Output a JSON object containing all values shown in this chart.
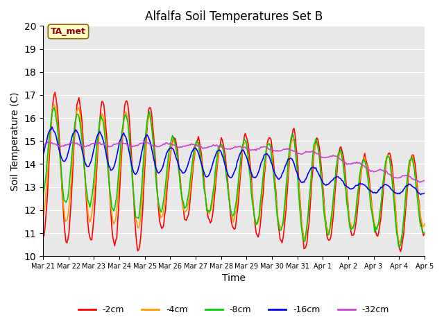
{
  "title": "Alfalfa Soil Temperatures Set B",
  "xlabel": "Time",
  "ylabel": "Soil Temperature (C)",
  "ylim": [
    10.0,
    20.0
  ],
  "yticks": [
    10.0,
    11.0,
    12.0,
    13.0,
    14.0,
    15.0,
    16.0,
    17.0,
    18.0,
    19.0,
    20.0
  ],
  "background_color": "#e8e8e8",
  "colors": {
    "-2cm": "#ff0000",
    "-4cm": "#ff9900",
    "-8cm": "#00cc00",
    "-16cm": "#0000ff",
    "-32cm": "#cc44cc"
  },
  "annotation_text": "TA_met",
  "annotation_box_color": "#ffffcc",
  "annotation_text_color": "#990000",
  "x_tick_labels": [
    "Mar 21",
    "Mar 22",
    "Mar 23",
    "Mar 24",
    "Mar 25",
    "Mar 26",
    "Mar 27",
    "Mar 28",
    "Mar 29",
    "Mar 30",
    "Mar 31",
    "Apr 1",
    "Apr 2",
    "Apr 3",
    "Apr 4",
    "Apr 5"
  ],
  "days": 16,
  "series": {
    "-2cm": {
      "base_trend": [
        14.0,
        13.8,
        13.7,
        13.6,
        13.5,
        13.4,
        13.3,
        13.2,
        13.1,
        13.0,
        12.9,
        12.8,
        12.7,
        12.6,
        12.5,
        12.5
      ],
      "amplitude": [
        3.2,
        3.2,
        3.0,
        3.2,
        3.3,
        1.8,
        1.8,
        1.8,
        2.2,
        2.2,
        2.6,
        2.2,
        1.9,
        1.6,
        2.3,
        1.5
      ],
      "phase": 0.0
    },
    "-4cm": {
      "base_trend": [
        14.2,
        14.0,
        13.9,
        13.8,
        13.7,
        13.5,
        13.4,
        13.3,
        13.2,
        13.1,
        13.0,
        12.9,
        12.8,
        12.7,
        12.6,
        12.6
      ],
      "amplitude": [
        2.5,
        2.5,
        2.3,
        2.4,
        2.6,
        1.5,
        1.5,
        1.5,
        1.8,
        1.8,
        2.2,
        1.9,
        1.6,
        1.4,
        2.0,
        1.3
      ],
      "phase": 0.15
    },
    "-8cm": {
      "base_trend": [
        14.5,
        14.3,
        14.1,
        14.0,
        13.9,
        13.7,
        13.5,
        13.4,
        13.3,
        13.1,
        13.0,
        12.9,
        12.8,
        12.6,
        12.5,
        12.5
      ],
      "amplitude": [
        2.0,
        2.0,
        1.9,
        2.1,
        2.5,
        1.5,
        1.5,
        1.5,
        1.8,
        1.8,
        2.4,
        2.0,
        1.7,
        1.4,
        2.1,
        1.4
      ],
      "phase": 0.3
    },
    "-16cm": {
      "base_trend": [
        14.9,
        14.8,
        14.6,
        14.5,
        14.4,
        14.2,
        14.1,
        14.0,
        14.0,
        13.9,
        13.7,
        13.4,
        13.1,
        12.9,
        12.9,
        12.9
      ],
      "amplitude": [
        0.7,
        0.7,
        0.8,
        0.8,
        0.9,
        0.5,
        0.6,
        0.6,
        0.6,
        0.5,
        0.5,
        0.3,
        0.15,
        0.15,
        0.2,
        0.2
      ],
      "phase": 0.8
    },
    "-32cm": {
      "base_trend": [
        14.85,
        14.85,
        14.85,
        14.85,
        14.85,
        14.82,
        14.78,
        14.73,
        14.68,
        14.65,
        14.55,
        14.4,
        14.1,
        13.75,
        13.45,
        13.3
      ],
      "amplitude": [
        0.08,
        0.08,
        0.08,
        0.08,
        0.1,
        0.08,
        0.07,
        0.07,
        0.07,
        0.07,
        0.09,
        0.09,
        0.09,
        0.09,
        0.09,
        0.09
      ],
      "phase": 1.5
    }
  }
}
